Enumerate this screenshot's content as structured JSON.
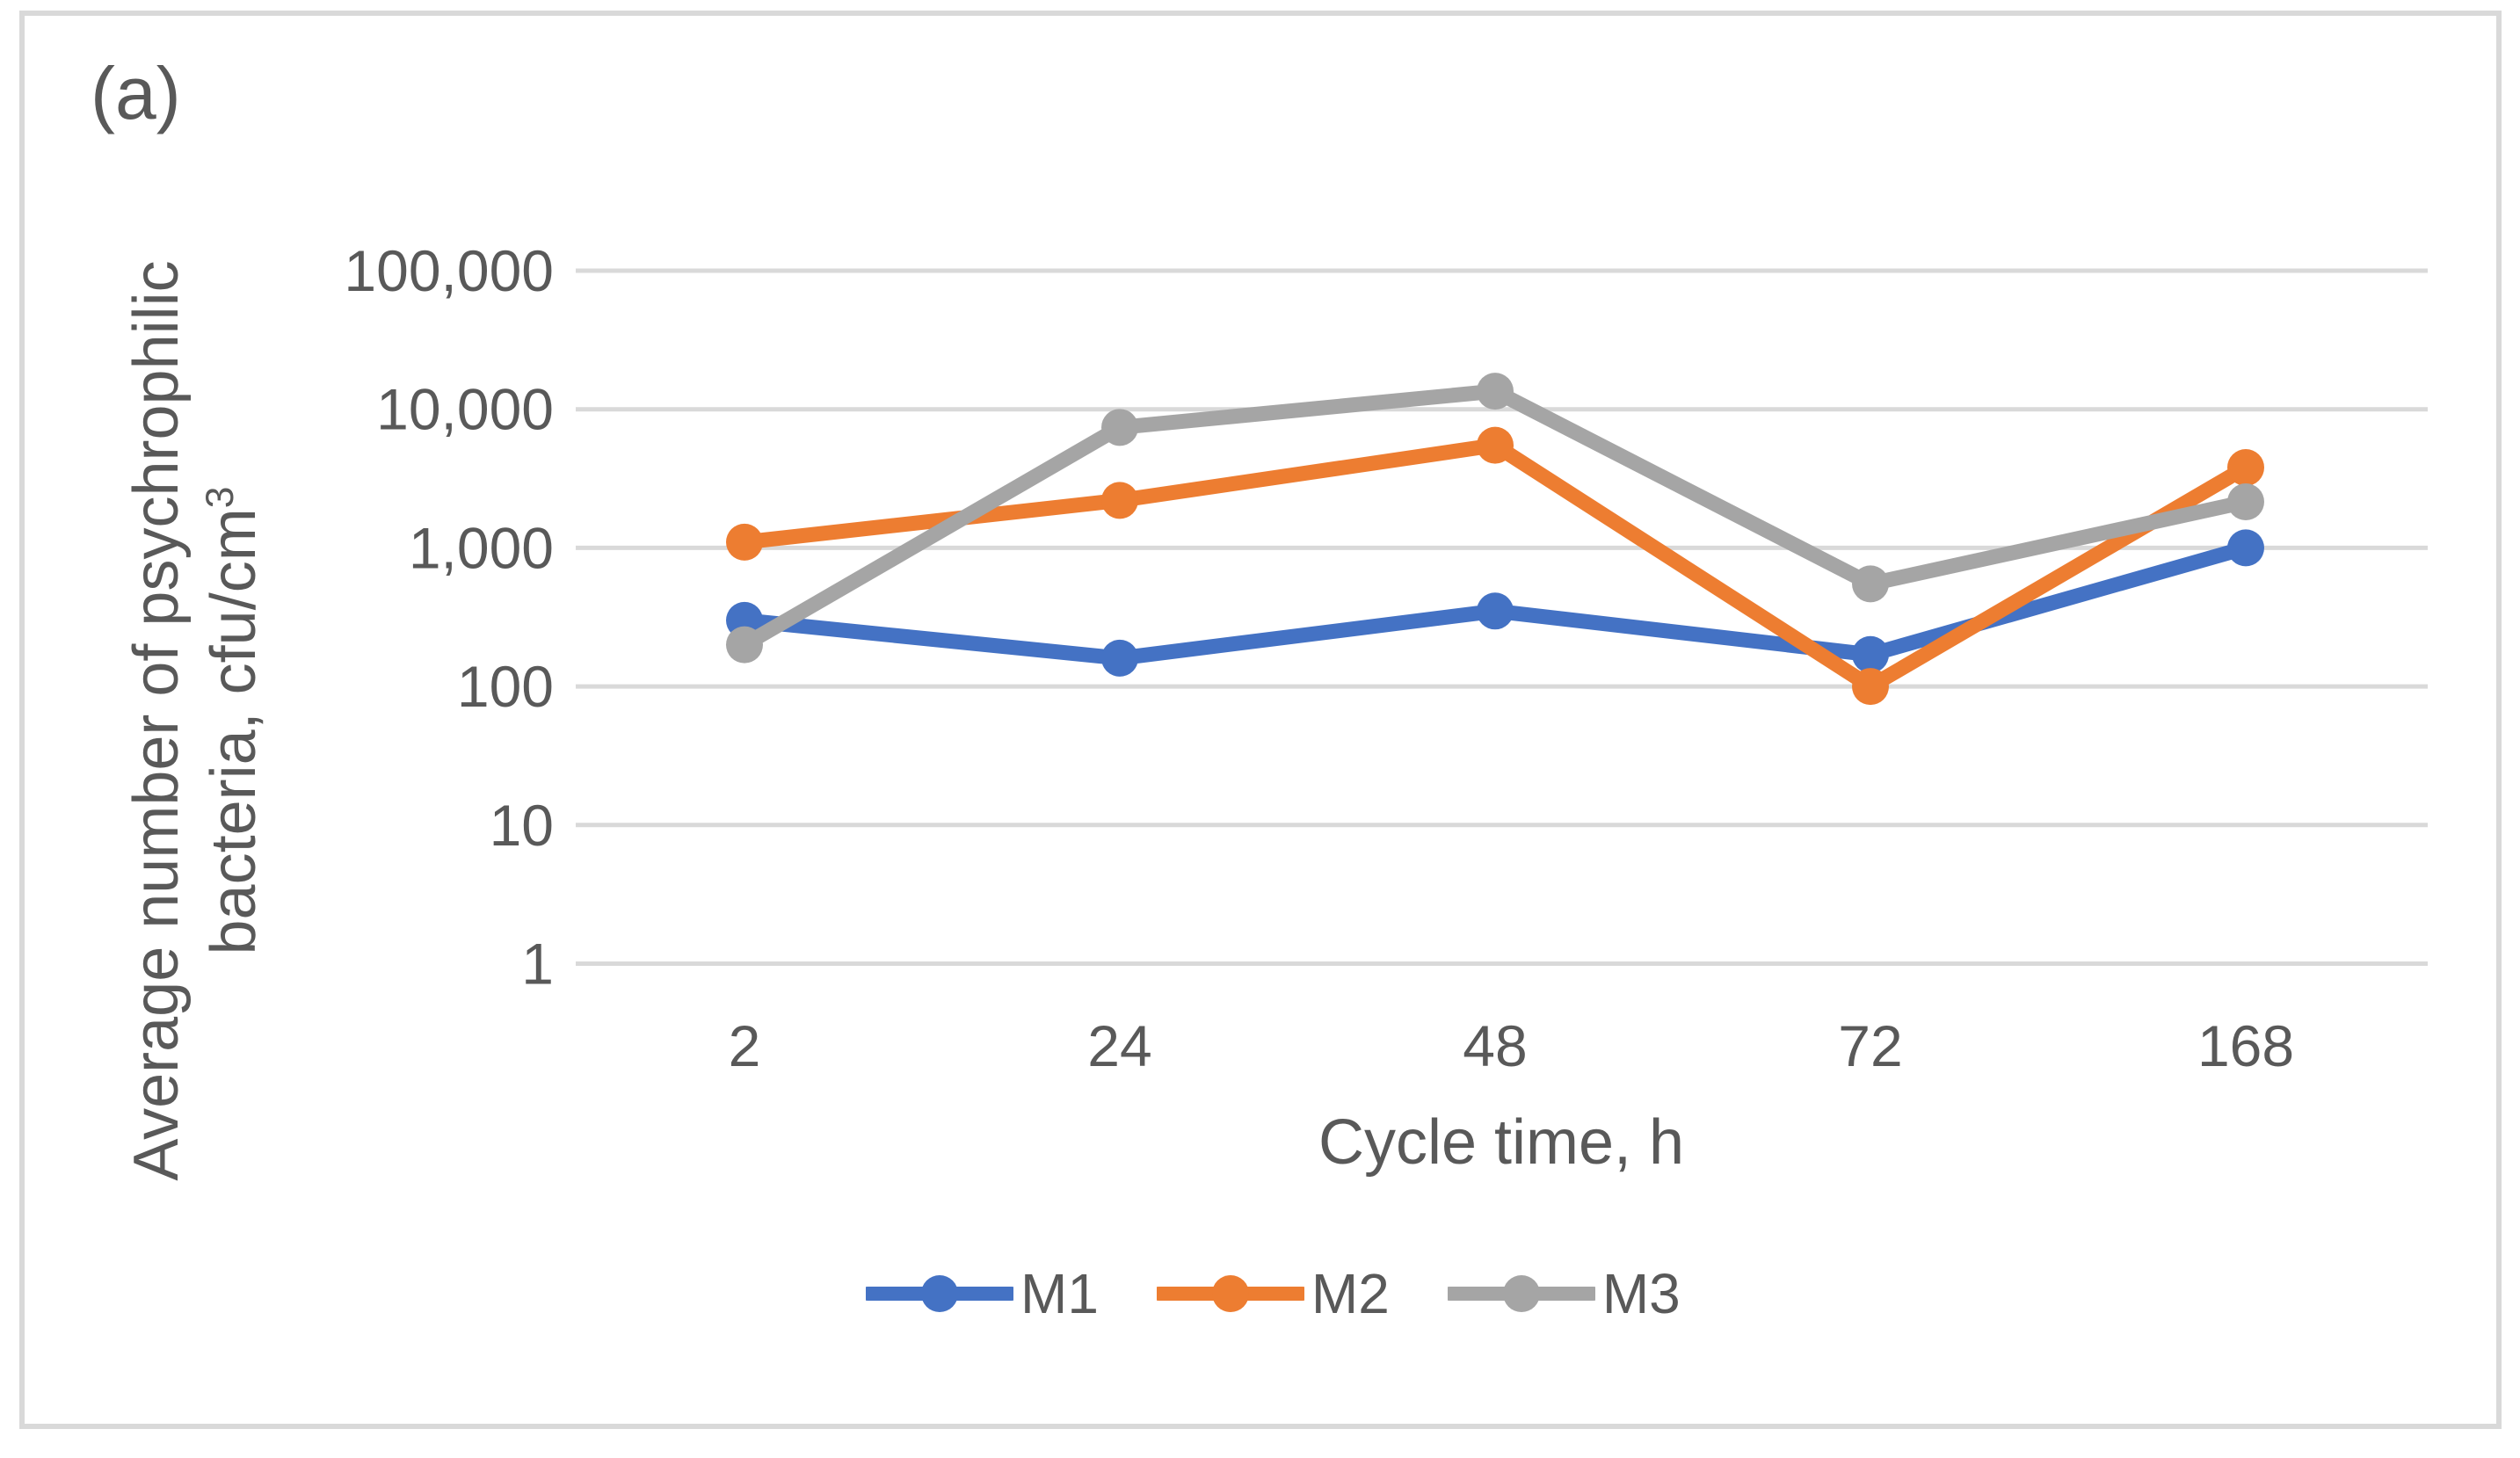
{
  "panel_label": "(a)",
  "colors": {
    "gridline": "#D9D9D9",
    "frame": "#D9D9D9",
    "text": "#595959",
    "m1_blue": "#4472C4",
    "m2_orange": "#ED7D31",
    "m3_gray": "#A5A5A5"
  },
  "chart_data": {
    "type": "line",
    "title": "",
    "xlabel": "Cycle time, h",
    "ylabel_line1": "Average number of psychrophilic",
    "ylabel_line2": "bacteria, cfu/cm",
    "ylabel_superscript": "3",
    "x_categories": [
      "2",
      "24",
      "48",
      "72",
      "168"
    ],
    "y_scale": "log",
    "ylim": [
      1,
      100000
    ],
    "y_ticks": [
      "100,000",
      "10,000",
      "1,000",
      "100",
      "10",
      "1"
    ],
    "y_tick_values": [
      100000,
      10000,
      1000,
      100,
      10,
      1
    ],
    "grid": "horizontal",
    "legend_position": "bottom",
    "series": [
      {
        "name": "M1",
        "color": "#4472C4",
        "values": [
          300,
          160,
          350,
          170,
          1000
        ]
      },
      {
        "name": "M2",
        "color": "#ED7D31",
        "values": [
          1100,
          2200,
          5500,
          100,
          3800
        ]
      },
      {
        "name": "M3",
        "color": "#A5A5A5",
        "values": [
          200,
          7400,
          13500,
          550,
          2150
        ]
      }
    ]
  }
}
